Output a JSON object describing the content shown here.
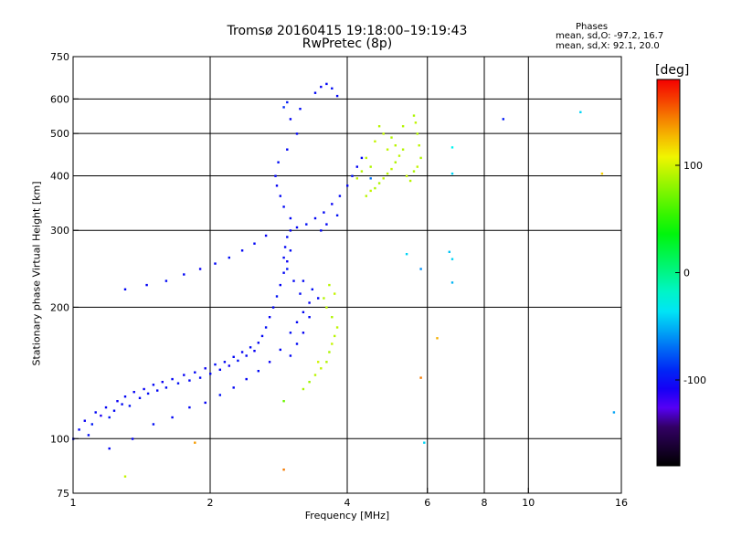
{
  "title": "Tromsø 20160415 19:18:00–19:19:43",
  "subtitle": "RwPretec (8p)",
  "stats": {
    "heading": "Phases",
    "o_mode": "mean, sd,O: -97.2, 16.7",
    "x_mode": "mean, sd,X:  92.1, 20.0"
  },
  "colorbar": {
    "unit": "[deg]",
    "ticks": [
      {
        "value": 100,
        "label": "100"
      },
      {
        "value": 0,
        "label": "0"
      },
      {
        "value": -100,
        "label": "-100"
      }
    ],
    "range": [
      -180,
      180
    ]
  },
  "chart_data": {
    "type": "scatter",
    "title": "Tromsø 20160415 19:18:00–19:19:43",
    "subtitle": "RwPretec (8p)",
    "xlabel": "Frequency [MHz]",
    "ylabel": "Stationary phase Virtual Height [km]",
    "x_scale": "log",
    "y_scale": "log",
    "xlim": [
      1,
      16
    ],
    "ylim": [
      75,
      750
    ],
    "x_ticks": [
      {
        "value": 1,
        "label": "1"
      },
      {
        "value": 2,
        "label": "2"
      },
      {
        "value": 4,
        "label": "4"
      },
      {
        "value": 6,
        "label": "6"
      },
      {
        "value": 8,
        "label": "8"
      },
      {
        "value": 10,
        "label": "10"
      },
      {
        "value": 16,
        "label": "16"
      }
    ],
    "y_ticks": [
      {
        "value": 75,
        "label": "75"
      },
      {
        "value": 100,
        "label": "100"
      },
      {
        "value": 200,
        "label": "200"
      },
      {
        "value": 300,
        "label": "300"
      },
      {
        "value": 400,
        "label": "400"
      },
      {
        "value": 500,
        "label": "500"
      },
      {
        "value": 600,
        "label": "600"
      },
      {
        "value": 750,
        "label": "750"
      }
    ],
    "x_grid": [
      2,
      4,
      6,
      8,
      10
    ],
    "y_grid": [
      100,
      200,
      300,
      400,
      500,
      600
    ],
    "grid": true,
    "color_scale": "rainbow phase [deg]",
    "series": [
      {
        "name": "O",
        "points": [
          [
            1.0,
            100,
            -100
          ],
          [
            1.03,
            105,
            -100
          ],
          [
            1.06,
            110,
            -104
          ],
          [
            1.08,
            102,
            -98
          ],
          [
            1.1,
            108,
            -95
          ],
          [
            1.12,
            115,
            -100
          ],
          [
            1.15,
            113,
            -110
          ],
          [
            1.18,
            118,
            -102
          ],
          [
            1.2,
            112,
            -96
          ],
          [
            1.23,
            116,
            -101
          ],
          [
            1.25,
            122,
            -105
          ],
          [
            1.28,
            120,
            -99
          ],
          [
            1.3,
            125,
            -100
          ],
          [
            1.33,
            119,
            -97
          ],
          [
            1.36,
            128,
            -103
          ],
          [
            1.4,
            124,
            -100
          ],
          [
            1.43,
            130,
            -104
          ],
          [
            1.46,
            127,
            -98
          ],
          [
            1.5,
            133,
            -101
          ],
          [
            1.53,
            129,
            -100
          ],
          [
            1.57,
            135,
            -105
          ],
          [
            1.6,
            131,
            -99
          ],
          [
            1.65,
            137,
            -102
          ],
          [
            1.7,
            134,
            -97
          ],
          [
            1.75,
            140,
            -103
          ],
          [
            1.8,
            136,
            -100
          ],
          [
            1.85,
            142,
            -101
          ],
          [
            1.9,
            138,
            -99
          ],
          [
            1.95,
            145,
            -104
          ],
          [
            2.0,
            141,
            -100
          ],
          [
            2.05,
            148,
            -98
          ],
          [
            2.1,
            144,
            -102
          ],
          [
            2.15,
            150,
            -100
          ],
          [
            2.2,
            147,
            -106
          ],
          [
            2.25,
            154,
            -101
          ],
          [
            2.3,
            151,
            -97
          ],
          [
            2.35,
            158,
            -103
          ],
          [
            2.4,
            155,
            -100
          ],
          [
            2.45,
            162,
            -99
          ],
          [
            2.5,
            159,
            -104
          ],
          [
            2.55,
            166,
            -100
          ],
          [
            2.6,
            172,
            -101
          ],
          [
            2.65,
            180,
            -98
          ],
          [
            2.7,
            190,
            -103
          ],
          [
            2.75,
            200,
            -100
          ],
          [
            2.8,
            212,
            -97
          ],
          [
            2.85,
            225,
            -102
          ],
          [
            2.9,
            240,
            -100
          ],
          [
            2.95,
            255,
            -105
          ],
          [
            3.0,
            270,
            -99
          ],
          [
            1.2,
            95,
            -100
          ],
          [
            1.35,
            100,
            -102
          ],
          [
            1.5,
            108,
            -98
          ],
          [
            1.65,
            112,
            -101
          ],
          [
            1.8,
            118,
            -100
          ],
          [
            1.95,
            121,
            -103
          ],
          [
            2.1,
            126,
            -97
          ],
          [
            2.25,
            131,
            -100
          ],
          [
            2.4,
            137,
            -102
          ],
          [
            2.55,
            143,
            -99
          ],
          [
            2.7,
            150,
            -104
          ],
          [
            2.85,
            160,
            -100
          ],
          [
            3.0,
            175,
            -98
          ],
          [
            3.1,
            185,
            -101
          ],
          [
            3.2,
            195,
            -100
          ],
          [
            3.3,
            205,
            -103
          ],
          [
            3.15,
            215,
            -99
          ],
          [
            3.05,
            230,
            -100
          ],
          [
            2.95,
            245,
            -96
          ],
          [
            2.9,
            260,
            -101
          ],
          [
            2.92,
            275,
            -100
          ],
          [
            2.95,
            290,
            -98
          ],
          [
            3.0,
            300,
            -102
          ],
          [
            3.1,
            305,
            -100
          ],
          [
            3.25,
            310,
            -97
          ],
          [
            3.4,
            320,
            -101
          ],
          [
            3.55,
            330,
            -100
          ],
          [
            3.7,
            345,
            -104
          ],
          [
            3.85,
            360,
            -99
          ],
          [
            4.0,
            380,
            -100
          ],
          [
            4.1,
            400,
            -98
          ],
          [
            4.2,
            420,
            -102
          ],
          [
            4.3,
            440,
            -100
          ],
          [
            3.0,
            320,
            -101
          ],
          [
            2.9,
            340,
            -99
          ],
          [
            2.85,
            360,
            -100
          ],
          [
            2.8,
            380,
            -103
          ],
          [
            2.78,
            400,
            -100
          ],
          [
            2.82,
            430,
            -98
          ],
          [
            2.95,
            460,
            -101
          ],
          [
            3.1,
            500,
            -100
          ],
          [
            3.0,
            540,
            -102
          ],
          [
            3.15,
            570,
            -99
          ],
          [
            3.4,
            620,
            -100
          ],
          [
            3.5,
            640,
            -103
          ],
          [
            3.6,
            650,
            -100
          ],
          [
            3.7,
            635,
            -98
          ],
          [
            3.8,
            610,
            -101
          ],
          [
            1.3,
            220,
            -100
          ],
          [
            1.45,
            225,
            -102
          ],
          [
            1.6,
            230,
            -99
          ],
          [
            1.75,
            238,
            -100
          ],
          [
            1.9,
            245,
            -104
          ],
          [
            2.05,
            252,
            -100
          ],
          [
            2.2,
            260,
            -98
          ],
          [
            2.35,
            270,
            -101
          ],
          [
            2.5,
            280,
            -100
          ],
          [
            2.65,
            292,
            -103
          ],
          [
            3.2,
            230,
            -100
          ],
          [
            3.35,
            220,
            -98
          ],
          [
            3.45,
            210,
            -101
          ],
          [
            3.3,
            190,
            -100
          ],
          [
            3.2,
            175,
            -103
          ],
          [
            3.1,
            165,
            -99
          ],
          [
            3.0,
            155,
            -100
          ],
          [
            3.5,
            300,
            -101
          ],
          [
            3.6,
            310,
            -100
          ],
          [
            3.8,
            325,
            -97
          ]
        ]
      },
      {
        "name": "X",
        "points": [
          [
            3.4,
            140,
            92
          ],
          [
            3.5,
            145,
            95
          ],
          [
            3.6,
            150,
            90
          ],
          [
            3.65,
            158,
            88
          ],
          [
            3.7,
            165,
            96
          ],
          [
            3.75,
            172,
            92
          ],
          [
            3.8,
            180,
            94
          ],
          [
            3.7,
            190,
            90
          ],
          [
            3.6,
            200,
            93
          ],
          [
            3.55,
            210,
            91
          ],
          [
            3.45,
            150,
            99
          ],
          [
            3.3,
            135,
            85
          ],
          [
            3.2,
            130,
            88
          ],
          [
            3.65,
            225,
            92
          ],
          [
            3.75,
            215,
            95
          ],
          [
            2.9,
            122,
            70
          ],
          [
            4.4,
            360,
            92
          ],
          [
            4.5,
            370,
            95
          ],
          [
            4.6,
            375,
            90
          ],
          [
            4.7,
            385,
            88
          ],
          [
            4.8,
            395,
            96
          ],
          [
            4.9,
            405,
            92
          ],
          [
            5.0,
            415,
            94
          ],
          [
            5.1,
            430,
            90
          ],
          [
            5.2,
            445,
            93
          ],
          [
            5.3,
            460,
            91
          ],
          [
            5.4,
            400,
            95
          ],
          [
            5.5,
            390,
            92
          ],
          [
            5.6,
            410,
            88
          ],
          [
            5.7,
            420,
            96
          ],
          [
            5.8,
            440,
            90
          ],
          [
            5.75,
            470,
            93
          ],
          [
            5.7,
            500,
            91
          ],
          [
            5.65,
            530,
            94
          ],
          [
            5.6,
            550,
            89
          ],
          [
            4.6,
            480,
            95
          ],
          [
            4.7,
            520,
            92
          ],
          [
            4.8,
            500,
            94
          ],
          [
            4.5,
            420,
            90
          ],
          [
            4.4,
            440,
            93
          ],
          [
            4.3,
            410,
            91
          ],
          [
            4.2,
            395,
            96
          ],
          [
            5.1,
            470,
            92
          ],
          [
            5.0,
            490,
            90
          ],
          [
            4.9,
            460,
            94
          ],
          [
            5.3,
            520,
            91
          ]
        ]
      },
      {
        "name": "",
        "points": [
          [
            6.3,
            170,
            130
          ],
          [
            5.8,
            138,
            145
          ],
          [
            4.5,
            395,
            -70
          ],
          [
            5.4,
            265,
            -40
          ],
          [
            5.8,
            245,
            -60
          ],
          [
            6.7,
            268,
            -45
          ],
          [
            6.8,
            258,
            -40
          ],
          [
            6.8,
            228,
            -50
          ],
          [
            6.8,
            465,
            -30
          ],
          [
            6.8,
            405,
            -40
          ],
          [
            5.9,
            98,
            -40
          ],
          [
            8.8,
            540,
            -95
          ],
          [
            13.0,
            560,
            -40
          ],
          [
            14.5,
            405,
            120
          ],
          [
            15.4,
            115,
            -55
          ],
          [
            2.9,
            85,
            145
          ],
          [
            1.3,
            82,
            95
          ],
          [
            1.85,
            98,
            135
          ],
          [
            2.9,
            575,
            -90
          ],
          [
            2.95,
            590,
            -95
          ]
        ]
      }
    ]
  }
}
